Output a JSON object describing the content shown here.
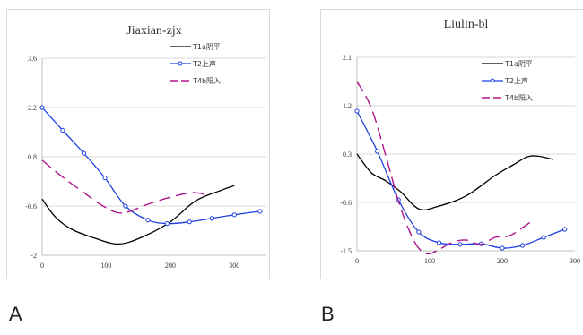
{
  "captions": [
    "A",
    "B"
  ],
  "chart_data": [
    {
      "type": "line",
      "title": "Jiaxian-zjx",
      "xlabel": "",
      "ylabel": "",
      "xlim": [
        0,
        350
      ],
      "ylim": [
        -2,
        3.6
      ],
      "x_ticks": [
        0,
        100,
        200,
        300
      ],
      "y_ticks": [
        -2,
        -0.6,
        0.8,
        2.2,
        3.6
      ],
      "y_tick_labels": [
        "-2",
        "-0.6",
        "0.8",
        "2.2",
        "3.6"
      ],
      "grid": "horizontal",
      "legend_position": "top-right",
      "series": [
        {
          "name": "T1a阴平",
          "color": "#000000",
          "style": "solid",
          "markers": false,
          "points": [
            [
              0,
              -0.4
            ],
            [
              20,
              -0.9
            ],
            [
              45,
              -1.25
            ],
            [
              80,
              -1.5
            ],
            [
              120,
              -1.68
            ],
            [
              160,
              -1.45
            ],
            [
              200,
              -1.05
            ],
            [
              240,
              -0.45
            ],
            [
              280,
              -0.15
            ],
            [
              300,
              -0.02
            ]
          ]
        },
        {
          "name": "T2上声",
          "color": "#1f3fe0",
          "style": "solid",
          "markers": true,
          "points": [
            [
              0,
              2.2
            ],
            [
              32,
              1.55
            ],
            [
              65,
              0.9
            ],
            [
              98,
              0.2
            ],
            [
              130,
              -0.6
            ],
            [
              165,
              -1.0
            ],
            [
              195,
              -1.1
            ],
            [
              230,
              -1.05
            ],
            [
              265,
              -0.95
            ],
            [
              300,
              -0.85
            ],
            [
              340,
              -0.75
            ]
          ]
        },
        {
          "name": "T4b阳入",
          "color": "#b0148c",
          "style": "dashed",
          "markers": false,
          "points": [
            [
              0,
              0.7
            ],
            [
              30,
              0.25
            ],
            [
              60,
              -0.15
            ],
            [
              95,
              -0.6
            ],
            [
              125,
              -0.8
            ],
            [
              165,
              -0.55
            ],
            [
              200,
              -0.35
            ],
            [
              235,
              -0.22
            ],
            [
              260,
              -0.3
            ]
          ]
        }
      ]
    },
    {
      "type": "line",
      "title": "Liulin-bl",
      "xlabel": "",
      "ylabel": "",
      "xlim": [
        0,
        300
      ],
      "ylim": [
        -1.5,
        2.1
      ],
      "x_ticks": [
        0,
        100,
        200,
        300
      ],
      "x_tick_labels": [
        "0",
        "100",
        "200",
        "300"
      ],
      "y_ticks": [
        -1.5,
        -0.6,
        0.3,
        1.2,
        2.1
      ],
      "y_tick_labels": [
        "-1.5",
        "-0.6",
        "0.3",
        "1.2",
        "2.1"
      ],
      "grid": "horizontal",
      "legend_position": "top-right",
      "series": [
        {
          "name": "T1a阴平",
          "color": "#000000",
          "style": "solid",
          "markers": false,
          "points": [
            [
              0,
              0.3
            ],
            [
              20,
              -0.05
            ],
            [
              40,
              -0.2
            ],
            [
              60,
              -0.4
            ],
            [
              85,
              -0.72
            ],
            [
              110,
              -0.68
            ],
            [
              150,
              -0.48
            ],
            [
              190,
              -0.1
            ],
            [
              215,
              0.1
            ],
            [
              235,
              0.25
            ],
            [
              250,
              0.26
            ],
            [
              270,
              0.2
            ]
          ]
        },
        {
          "name": "T2上声",
          "color": "#1f3fe0",
          "style": "solid",
          "markers": true,
          "points": [
            [
              0,
              1.1
            ],
            [
              28,
              0.35
            ],
            [
              57,
              -0.55
            ],
            [
              85,
              -1.15
            ],
            [
              113,
              -1.35
            ],
            [
              142,
              -1.38
            ],
            [
              171,
              -1.37
            ],
            [
              200,
              -1.45
            ],
            [
              228,
              -1.4
            ],
            [
              257,
              -1.25
            ],
            [
              286,
              -1.1
            ]
          ]
        },
        {
          "name": "T4b阳入",
          "color": "#b0148c",
          "style": "dashed",
          "markers": false,
          "points": [
            [
              0,
              1.65
            ],
            [
              20,
              1.15
            ],
            [
              40,
              0.25
            ],
            [
              60,
              -0.7
            ],
            [
              80,
              -1.35
            ],
            [
              95,
              -1.55
            ],
            [
              110,
              -1.5
            ],
            [
              130,
              -1.35
            ],
            [
              150,
              -1.3
            ],
            [
              170,
              -1.38
            ],
            [
              190,
              -1.25
            ],
            [
              210,
              -1.22
            ],
            [
              230,
              -1.05
            ],
            [
              240,
              -0.95
            ]
          ]
        }
      ]
    }
  ]
}
